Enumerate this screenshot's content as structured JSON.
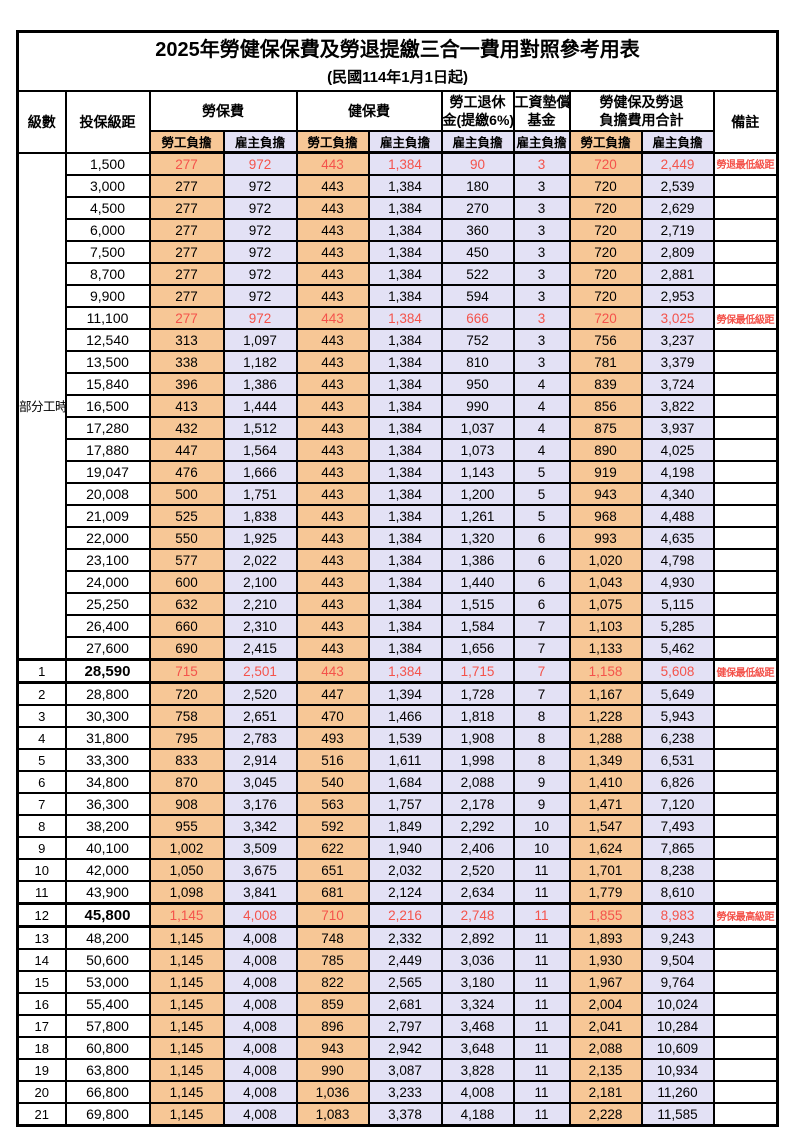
{
  "title": "2025年勞健保保費及勞退提繳三合一費用對照參考用表",
  "subtitle": "(民國114年1月1日起)",
  "header": {
    "level": "級數",
    "bracket": "投保級距",
    "labor_group": "勞保費",
    "health_group": "健保費",
    "pension_line1": "勞工退休",
    "pension_line2": "金(提繳6%)",
    "fund_line1": "工資墊償",
    "fund_line2": "基金",
    "total_line1": "勞健保及勞退",
    "total_line2": "負擔費用合計",
    "remark": "備註",
    "worker": "勞工負擔",
    "employer": "雇主負擔"
  },
  "colors": {
    "worker_bg": "#F7C796",
    "employer_bg": "#E3E1F5",
    "highlight_red": "#F4534B",
    "border": "#000000"
  },
  "part_time_label": "部分工時",
  "part_time_rowspan": 23,
  "rows": [
    {
      "level": null,
      "bracket": "1,500",
      "v": [
        "277",
        "972",
        "443",
        "1,384",
        "90",
        "3",
        "720",
        "2,449"
      ],
      "remark": "勞退最低級距",
      "red": true
    },
    {
      "level": null,
      "bracket": "3,000",
      "v": [
        "277",
        "972",
        "443",
        "1,384",
        "180",
        "3",
        "720",
        "2,539"
      ],
      "remark": ""
    },
    {
      "level": null,
      "bracket": "4,500",
      "v": [
        "277",
        "972",
        "443",
        "1,384",
        "270",
        "3",
        "720",
        "2,629"
      ],
      "remark": ""
    },
    {
      "level": null,
      "bracket": "6,000",
      "v": [
        "277",
        "972",
        "443",
        "1,384",
        "360",
        "3",
        "720",
        "2,719"
      ],
      "remark": ""
    },
    {
      "level": null,
      "bracket": "7,500",
      "v": [
        "277",
        "972",
        "443",
        "1,384",
        "450",
        "3",
        "720",
        "2,809"
      ],
      "remark": ""
    },
    {
      "level": null,
      "bracket": "8,700",
      "v": [
        "277",
        "972",
        "443",
        "1,384",
        "522",
        "3",
        "720",
        "2,881"
      ],
      "remark": ""
    },
    {
      "level": null,
      "bracket": "9,900",
      "v": [
        "277",
        "972",
        "443",
        "1,384",
        "594",
        "3",
        "720",
        "2,953"
      ],
      "remark": ""
    },
    {
      "level": null,
      "bracket": "11,100",
      "v": [
        "277",
        "972",
        "443",
        "1,384",
        "666",
        "3",
        "720",
        "3,025"
      ],
      "remark": "勞保最低級距",
      "red": true
    },
    {
      "level": null,
      "bracket": "12,540",
      "v": [
        "313",
        "1,097",
        "443",
        "1,384",
        "752",
        "3",
        "756",
        "3,237"
      ],
      "remark": ""
    },
    {
      "level": null,
      "bracket": "13,500",
      "v": [
        "338",
        "1,182",
        "443",
        "1,384",
        "810",
        "3",
        "781",
        "3,379"
      ],
      "remark": ""
    },
    {
      "level": null,
      "bracket": "15,840",
      "v": [
        "396",
        "1,386",
        "443",
        "1,384",
        "950",
        "4",
        "839",
        "3,724"
      ],
      "remark": ""
    },
    {
      "level": null,
      "bracket": "16,500",
      "v": [
        "413",
        "1,444",
        "443",
        "1,384",
        "990",
        "4",
        "856",
        "3,822"
      ],
      "remark": ""
    },
    {
      "level": null,
      "bracket": "17,280",
      "v": [
        "432",
        "1,512",
        "443",
        "1,384",
        "1,037",
        "4",
        "875",
        "3,937"
      ],
      "remark": ""
    },
    {
      "level": null,
      "bracket": "17,880",
      "v": [
        "447",
        "1,564",
        "443",
        "1,384",
        "1,073",
        "4",
        "890",
        "4,025"
      ],
      "remark": ""
    },
    {
      "level": null,
      "bracket": "19,047",
      "v": [
        "476",
        "1,666",
        "443",
        "1,384",
        "1,143",
        "5",
        "919",
        "4,198"
      ],
      "remark": ""
    },
    {
      "level": null,
      "bracket": "20,008",
      "v": [
        "500",
        "1,751",
        "443",
        "1,384",
        "1,200",
        "5",
        "943",
        "4,340"
      ],
      "remark": ""
    },
    {
      "level": null,
      "bracket": "21,009",
      "v": [
        "525",
        "1,838",
        "443",
        "1,384",
        "1,261",
        "5",
        "968",
        "4,488"
      ],
      "remark": ""
    },
    {
      "level": null,
      "bracket": "22,000",
      "v": [
        "550",
        "1,925",
        "443",
        "1,384",
        "1,320",
        "6",
        "993",
        "4,635"
      ],
      "remark": ""
    },
    {
      "level": null,
      "bracket": "23,100",
      "v": [
        "577",
        "2,022",
        "443",
        "1,384",
        "1,386",
        "6",
        "1,020",
        "4,798"
      ],
      "remark": ""
    },
    {
      "level": null,
      "bracket": "24,000",
      "v": [
        "600",
        "2,100",
        "443",
        "1,384",
        "1,440",
        "6",
        "1,043",
        "4,930"
      ],
      "remark": ""
    },
    {
      "level": null,
      "bracket": "25,250",
      "v": [
        "632",
        "2,210",
        "443",
        "1,384",
        "1,515",
        "6",
        "1,075",
        "5,115"
      ],
      "remark": ""
    },
    {
      "level": null,
      "bracket": "26,400",
      "v": [
        "660",
        "2,310",
        "443",
        "1,384",
        "1,584",
        "7",
        "1,103",
        "5,285"
      ],
      "remark": ""
    },
    {
      "level": null,
      "bracket": "27,600",
      "v": [
        "690",
        "2,415",
        "443",
        "1,384",
        "1,656",
        "7",
        "1,133",
        "5,462"
      ],
      "remark": ""
    },
    {
      "level": "1",
      "bracket": "28,590",
      "v": [
        "715",
        "2,501",
        "443",
        "1,384",
        "1,715",
        "7",
        "1,158",
        "5,608"
      ],
      "remark": "健保最低級距",
      "red": true,
      "thick": true,
      "emph": true
    },
    {
      "level": "2",
      "bracket": "28,800",
      "v": [
        "720",
        "2,520",
        "447",
        "1,394",
        "1,728",
        "7",
        "1,167",
        "5,649"
      ],
      "remark": ""
    },
    {
      "level": "3",
      "bracket": "30,300",
      "v": [
        "758",
        "2,651",
        "470",
        "1,466",
        "1,818",
        "8",
        "1,228",
        "5,943"
      ],
      "remark": ""
    },
    {
      "level": "4",
      "bracket": "31,800",
      "v": [
        "795",
        "2,783",
        "493",
        "1,539",
        "1,908",
        "8",
        "1,288",
        "6,238"
      ],
      "remark": ""
    },
    {
      "level": "5",
      "bracket": "33,300",
      "v": [
        "833",
        "2,914",
        "516",
        "1,611",
        "1,998",
        "8",
        "1,349",
        "6,531"
      ],
      "remark": ""
    },
    {
      "level": "6",
      "bracket": "34,800",
      "v": [
        "870",
        "3,045",
        "540",
        "1,684",
        "2,088",
        "9",
        "1,410",
        "6,826"
      ],
      "remark": ""
    },
    {
      "level": "7",
      "bracket": "36,300",
      "v": [
        "908",
        "3,176",
        "563",
        "1,757",
        "2,178",
        "9",
        "1,471",
        "7,120"
      ],
      "remark": ""
    },
    {
      "level": "8",
      "bracket": "38,200",
      "v": [
        "955",
        "3,342",
        "592",
        "1,849",
        "2,292",
        "10",
        "1,547",
        "7,493"
      ],
      "remark": ""
    },
    {
      "level": "9",
      "bracket": "40,100",
      "v": [
        "1,002",
        "3,509",
        "622",
        "1,940",
        "2,406",
        "10",
        "1,624",
        "7,865"
      ],
      "remark": ""
    },
    {
      "level": "10",
      "bracket": "42,000",
      "v": [
        "1,050",
        "3,675",
        "651",
        "2,032",
        "2,520",
        "11",
        "1,701",
        "8,238"
      ],
      "remark": ""
    },
    {
      "level": "11",
      "bracket": "43,900",
      "v": [
        "1,098",
        "3,841",
        "681",
        "2,124",
        "2,634",
        "11",
        "1,779",
        "8,610"
      ],
      "remark": ""
    },
    {
      "level": "12",
      "bracket": "45,800",
      "v": [
        "1,145",
        "4,008",
        "710",
        "2,216",
        "2,748",
        "11",
        "1,855",
        "8,983"
      ],
      "remark": "勞保最高級距",
      "red": true,
      "thick": true,
      "emph": true
    },
    {
      "level": "13",
      "bracket": "48,200",
      "v": [
        "1,145",
        "4,008",
        "748",
        "2,332",
        "2,892",
        "11",
        "1,893",
        "9,243"
      ],
      "remark": ""
    },
    {
      "level": "14",
      "bracket": "50,600",
      "v": [
        "1,145",
        "4,008",
        "785",
        "2,449",
        "3,036",
        "11",
        "1,930",
        "9,504"
      ],
      "remark": ""
    },
    {
      "level": "15",
      "bracket": "53,000",
      "v": [
        "1,145",
        "4,008",
        "822",
        "2,565",
        "3,180",
        "11",
        "1,967",
        "9,764"
      ],
      "remark": ""
    },
    {
      "level": "16",
      "bracket": "55,400",
      "v": [
        "1,145",
        "4,008",
        "859",
        "2,681",
        "3,324",
        "11",
        "2,004",
        "10,024"
      ],
      "remark": ""
    },
    {
      "level": "17",
      "bracket": "57,800",
      "v": [
        "1,145",
        "4,008",
        "896",
        "2,797",
        "3,468",
        "11",
        "2,041",
        "10,284"
      ],
      "remark": ""
    },
    {
      "level": "18",
      "bracket": "60,800",
      "v": [
        "1,145",
        "4,008",
        "943",
        "2,942",
        "3,648",
        "11",
        "2,088",
        "10,609"
      ],
      "remark": ""
    },
    {
      "level": "19",
      "bracket": "63,800",
      "v": [
        "1,145",
        "4,008",
        "990",
        "3,087",
        "3,828",
        "11",
        "2,135",
        "10,934"
      ],
      "remark": ""
    },
    {
      "level": "20",
      "bracket": "66,800",
      "v": [
        "1,145",
        "4,008",
        "1,036",
        "3,233",
        "4,008",
        "11",
        "2,181",
        "11,260"
      ],
      "remark": ""
    },
    {
      "level": "21",
      "bracket": "69,800",
      "v": [
        "1,145",
        "4,008",
        "1,083",
        "3,378",
        "4,188",
        "11",
        "2,228",
        "11,585"
      ],
      "remark": ""
    }
  ]
}
